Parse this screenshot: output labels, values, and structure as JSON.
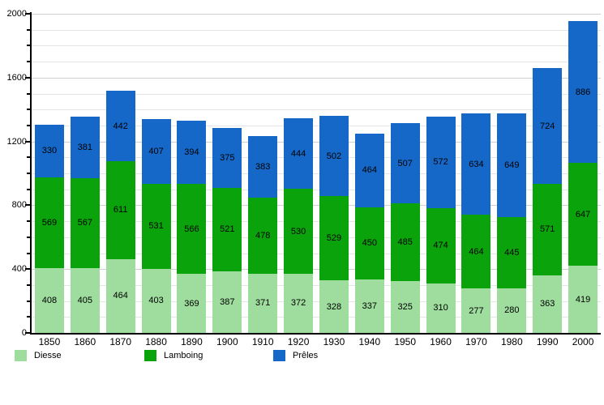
{
  "chart_data": {
    "type": "bar",
    "stacked": true,
    "title": "",
    "xlabel": "",
    "ylabel": "",
    "categories": [
      "1850",
      "1860",
      "1870",
      "1880",
      "1890",
      "1900",
      "1910",
      "1920",
      "1930",
      "1940",
      "1950",
      "1960",
      "1970",
      "1980",
      "1990",
      "2000"
    ],
    "series": [
      {
        "name": "Diesse",
        "color": "#9EDD9E",
        "values": [
          408,
          405,
          464,
          403,
          369,
          387,
          371,
          372,
          328,
          337,
          325,
          310,
          277,
          280,
          363,
          419
        ]
      },
      {
        "name": "Lamboing",
        "color": "#0BA30B",
        "values": [
          569,
          567,
          611,
          531,
          566,
          521,
          478,
          530,
          529,
          450,
          485,
          474,
          464,
          445,
          571,
          647
        ]
      },
      {
        "name": "Prêles",
        "color": "#1568C8",
        "values": [
          330,
          381,
          442,
          407,
          394,
          375,
          383,
          444,
          502,
          464,
          507,
          572,
          634,
          649,
          724,
          886
        ]
      }
    ],
    "ylim": [
      0,
      2000
    ],
    "y_major_ticks": [
      0,
      400,
      800,
      1200,
      1600,
      2000
    ],
    "y_major_tick_labels": [
      "0",
      "400",
      "800",
      "1200",
      "1600",
      "2000"
    ],
    "y_minor_step": 100,
    "grid": true,
    "gridline_minor_color": "#e4e4e4",
    "gridline_major_color": "#cfcfcf",
    "axis_color": "#000000",
    "value_labels": true,
    "legend_position": "bottom"
  }
}
